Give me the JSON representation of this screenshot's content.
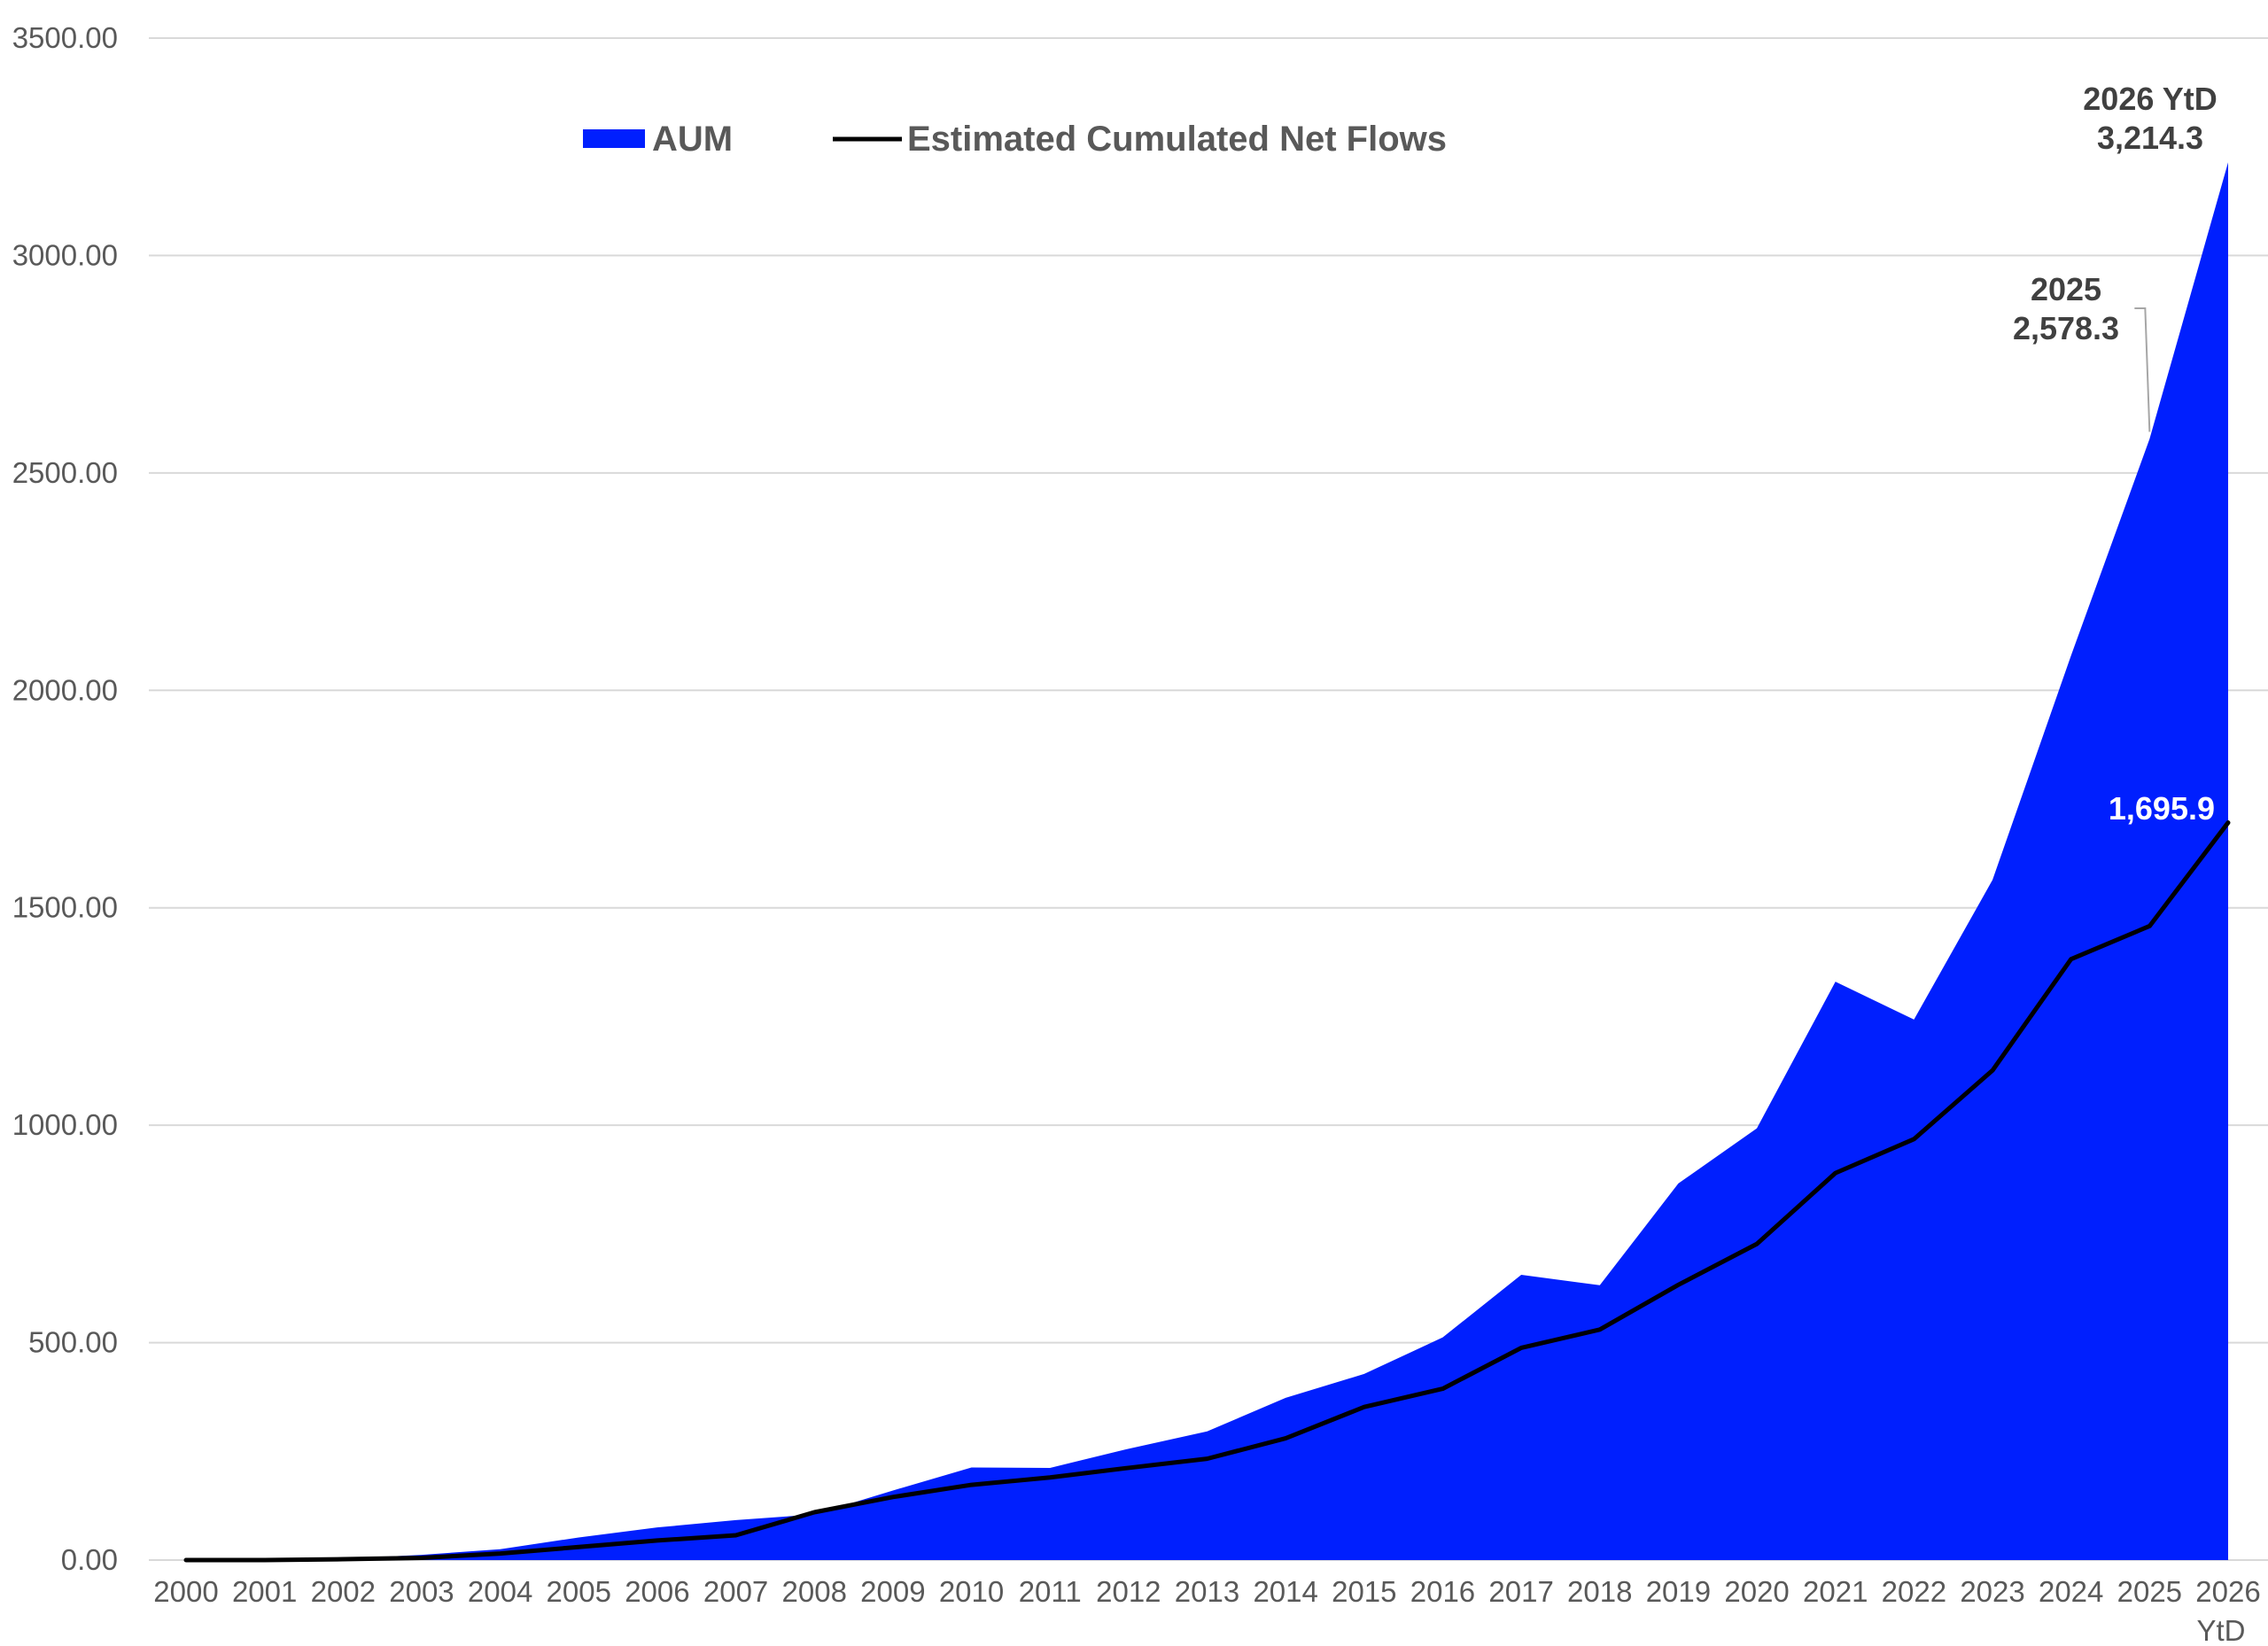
{
  "chart_data": {
    "type": "area",
    "categories": [
      "2000",
      "2001",
      "2002",
      "2003",
      "2004",
      "2005",
      "2006",
      "2007",
      "2008",
      "2009",
      "2010",
      "2011",
      "2012",
      "2013",
      "2014",
      "2015",
      "2016",
      "2017",
      "2018",
      "2019",
      "2020",
      "2021",
      "2022",
      "2023",
      "2024",
      "2025",
      "2026"
    ],
    "category_sublabels": {
      "2026": "YtD"
    },
    "series": [
      {
        "name": "AUM",
        "type": "area",
        "color": "#001ffe",
        "values": [
          0,
          0,
          3,
          12,
          25,
          52,
          75,
          92,
          105,
          160,
          213,
          212,
          256,
          296,
          373,
          428,
          512,
          656,
          632,
          866,
          993,
          1330,
          1243,
          1564,
          2080,
          2578.3,
          3214.3
        ]
      },
      {
        "name": "Estimated Cumulated Net Flows",
        "type": "line",
        "color": "#000000",
        "values": [
          0,
          0,
          2,
          5,
          15,
          30,
          45,
          57,
          110,
          145,
          173,
          190,
          212,
          233,
          280,
          352,
          394,
          488,
          530,
          633,
          727,
          890,
          968,
          1126,
          1382,
          1458,
          1695.9
        ]
      }
    ],
    "y_ticks": [
      "0.00",
      "500.00",
      "1000.00",
      "1500.00",
      "2000.00",
      "2500.00",
      "3000.00",
      "3500.00"
    ],
    "ylim": [
      0,
      3500
    ],
    "grid": true,
    "legend_position": "top",
    "annotations": [
      {
        "category": "2026",
        "series": "AUM",
        "lines": [
          "2026 YtD",
          "3,214.3"
        ]
      },
      {
        "category": "2025",
        "series": "AUM",
        "lines": [
          "2025",
          "2,578.3"
        ]
      },
      {
        "category": "2026",
        "series": "Estimated Cumulated Net Flows",
        "lines": [
          "1,695.9"
        ]
      }
    ],
    "colors": {
      "gridline": "#d9d9d9",
      "tick_text": "#595959",
      "annotation_dark": "#404040",
      "annotation_light": "#ffffff"
    }
  }
}
